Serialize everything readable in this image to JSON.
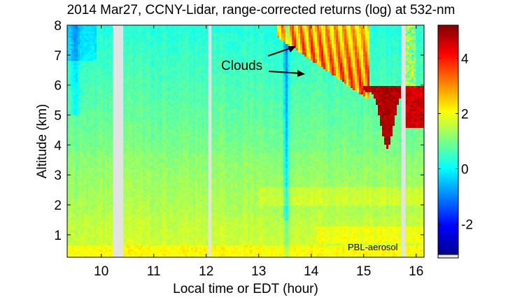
{
  "chart_data": {
    "type": "heatmap",
    "title": "2014 Mar27, CCNY-Lidar, range-corrected returns (log) at 532-nm",
    "xlabel": "Local time or EDT (hour)",
    "ylabel": "Altitude (km)",
    "xlim": [
      9.35,
      16.15
    ],
    "ylim": [
      0.25,
      8.0
    ],
    "x_ticks": [
      10,
      11,
      12,
      13,
      14,
      15,
      16
    ],
    "y_ticks": [
      1,
      2,
      3,
      4,
      5,
      6,
      7,
      8
    ],
    "colorbar": {
      "range": [
        -3.1,
        5.2
      ],
      "ticks": [
        -2,
        0,
        2,
        4
      ],
      "colormap": "jet"
    },
    "data_gaps_hours": [
      [
        10.22,
        10.42
      ],
      [
        12.04,
        12.1
      ],
      [
        15.72,
        15.8
      ]
    ],
    "annotations": [
      {
        "text": "Clouds",
        "x": 13.07,
        "y": 6.65
      },
      {
        "text": "PBL-aerosol",
        "x": 15.3,
        "y": 0.62
      }
    ]
  }
}
